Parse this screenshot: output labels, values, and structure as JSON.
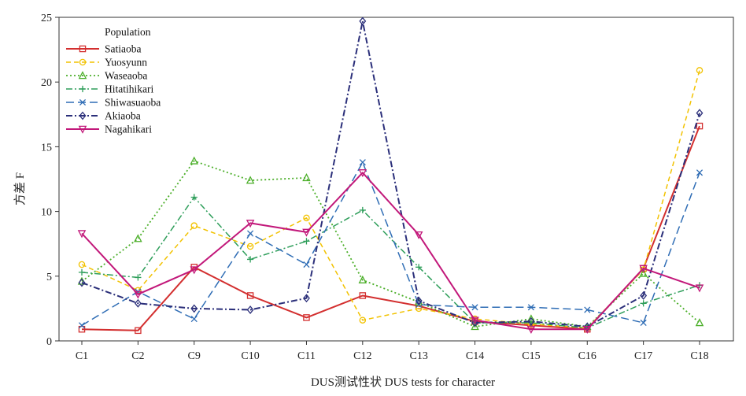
{
  "chart_data": {
    "type": "line",
    "title": "",
    "xlabel": "DUS测试性状 DUS tests for character",
    "ylabel": "方差 F",
    "ylim": [
      0,
      25
    ],
    "yticks": [
      0,
      5,
      10,
      15,
      20,
      25
    ],
    "grid": false,
    "legend": {
      "title": "Population",
      "placement": "top-left"
    },
    "categories": [
      "C1",
      "C2",
      "C9",
      "C10",
      "C11",
      "C12",
      "C13",
      "C14",
      "C15",
      "C16",
      "C17",
      "C18"
    ],
    "series": [
      {
        "name": "Satiaoba",
        "color": "#d32f2f",
        "marker": "square",
        "dash": "",
        "width": 2,
        "values": [
          0.9,
          0.8,
          5.7,
          3.5,
          1.8,
          3.5,
          2.7,
          1.5,
          1.2,
          0.9,
          5.6,
          16.6
        ]
      },
      {
        "name": "Yuosyunn",
        "color": "#f2c200",
        "marker": "circle",
        "dash": "6,4",
        "width": 1.5,
        "values": [
          5.9,
          3.9,
          8.9,
          7.3,
          9.5,
          1.6,
          2.5,
          1.7,
          1.3,
          1.0,
          5.5,
          20.9
        ]
      },
      {
        "name": "Waseaoba",
        "color": "#4caf2a",
        "marker": "triangle-up",
        "dash": "2,3",
        "width": 1.8,
        "values": [
          4.6,
          7.9,
          13.9,
          12.4,
          12.6,
          4.7,
          3.0,
          1.1,
          1.7,
          1.1,
          5.2,
          1.4
        ]
      },
      {
        "name": "Hitatihikari",
        "color": "#2e9e5a",
        "marker": "plus",
        "dash": "8,3,2,3",
        "width": 1.5,
        "values": [
          5.3,
          4.9,
          11.1,
          6.3,
          7.7,
          10.1,
          5.7,
          1.4,
          1.4,
          1.0,
          2.9,
          4.3
        ]
      },
      {
        "name": "Shiwasuaoba",
        "color": "#2f6db5",
        "marker": "x",
        "dash": "10,5",
        "width": 1.5,
        "values": [
          1.2,
          3.8,
          1.7,
          8.3,
          5.9,
          13.8,
          2.8,
          2.6,
          2.6,
          2.4,
          1.4,
          13.0
        ]
      },
      {
        "name": "Akiaoba",
        "color": "#2b2f7a",
        "marker": "diamond",
        "dash": "8,3,2,3",
        "width": 2,
        "values": [
          4.5,
          2.9,
          2.5,
          2.4,
          3.3,
          24.7,
          3.1,
          1.4,
          1.5,
          1.1,
          3.5,
          17.6
        ]
      },
      {
        "name": "Nagahikari",
        "color": "#c2187a",
        "marker": "triangle-down",
        "dash": "",
        "width": 2,
        "values": [
          8.3,
          3.6,
          5.5,
          9.1,
          8.4,
          13.0,
          8.2,
          1.6,
          0.9,
          0.9,
          5.6,
          4.1
        ]
      }
    ]
  }
}
